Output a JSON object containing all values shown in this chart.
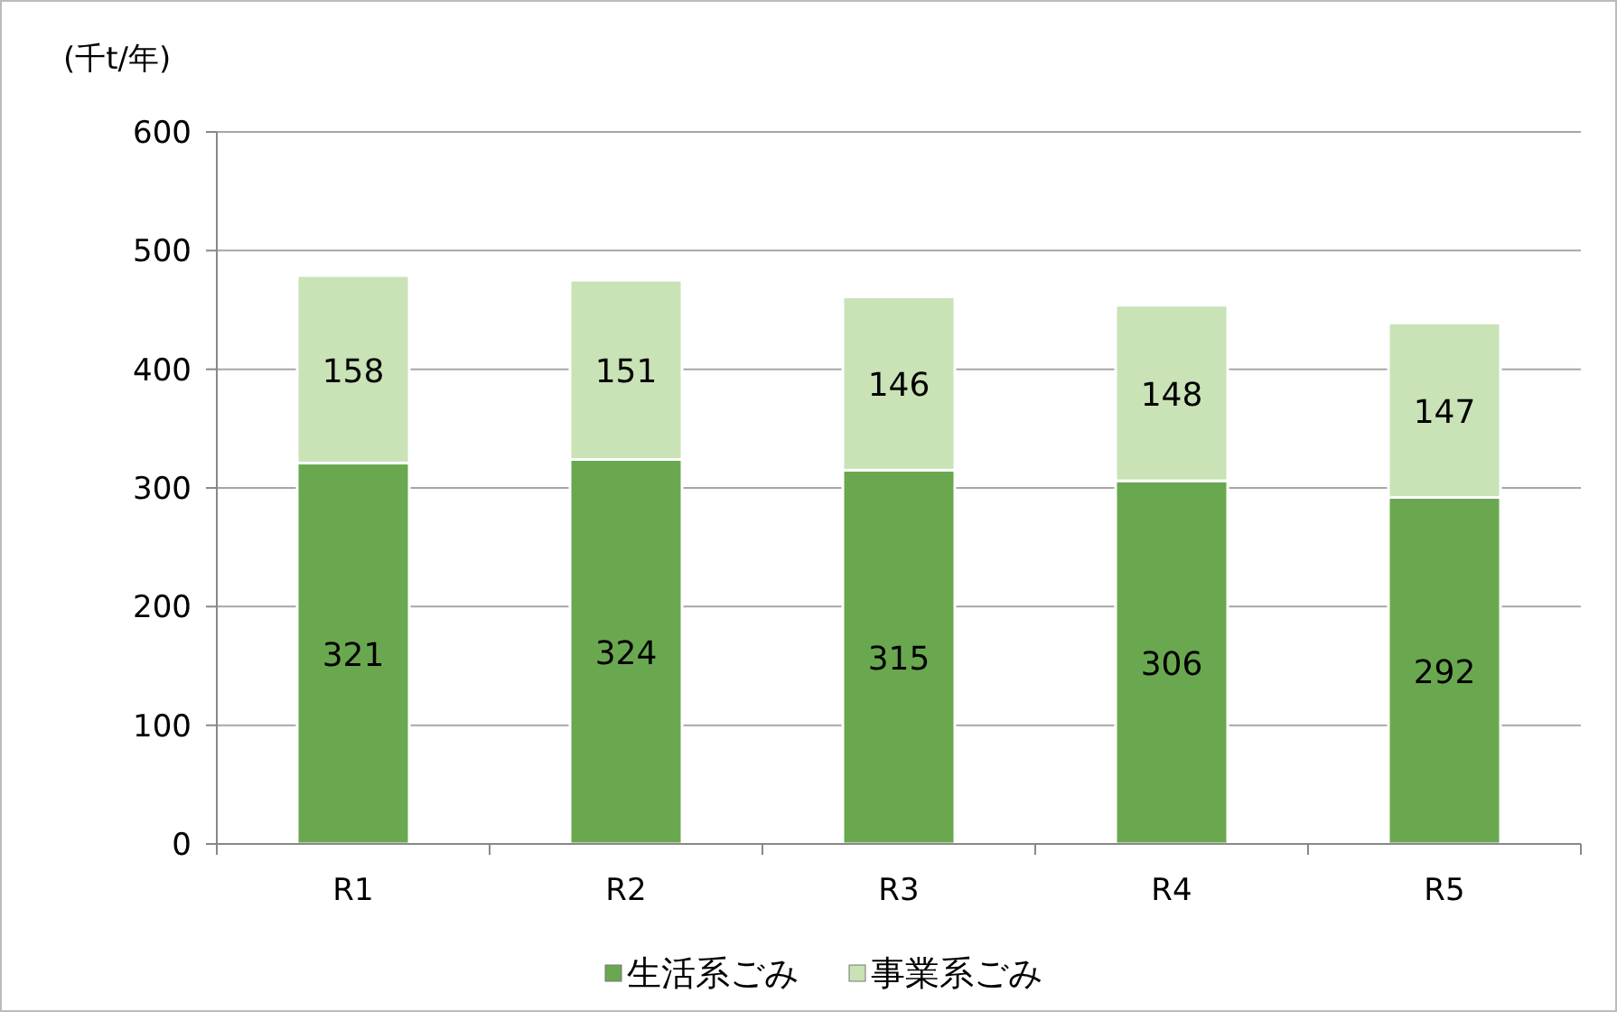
{
  "chart_data": {
    "type": "bar",
    "stacked": true,
    "ylabel": "(千t/年)",
    "categories": [
      "R1",
      "R2",
      "R3",
      "R4",
      "R5"
    ],
    "series": [
      {
        "name": "生活系ごみ",
        "color": "#6aa84f",
        "values": [
          321,
          324,
          315,
          306,
          292
        ]
      },
      {
        "name": "事業系ごみ",
        "color": "#c9e2b6",
        "values": [
          158,
          151,
          146,
          148,
          147
        ]
      }
    ],
    "ylim": [
      0,
      600
    ],
    "yticks": [
      0,
      100,
      200,
      300,
      400,
      500,
      600
    ],
    "grid": "y",
    "legend": "bottom",
    "data_labels": true
  }
}
